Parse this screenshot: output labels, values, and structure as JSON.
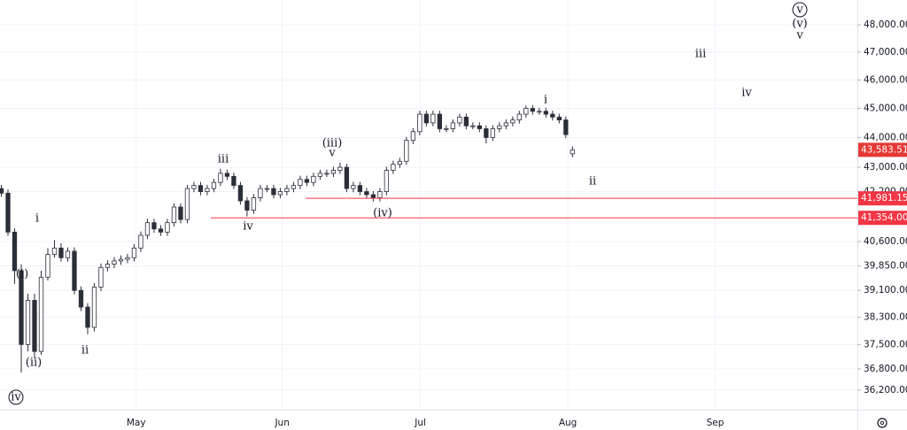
{
  "chart_data": {
    "type": "candlestick",
    "log_scale": true,
    "grid": true,
    "up_color": "#ffffff",
    "down_color": "#2a2e39",
    "line_color": "#f23645",
    "last_color": "#e53935",
    "xlim": [
      -0.2,
      128.9
    ],
    "xticks": [
      {
        "value": 20.3,
        "label": "May"
      },
      {
        "value": 42.3,
        "label": "Jun"
      },
      {
        "value": 63.1,
        "label": "Jul"
      },
      {
        "value": 85.3,
        "label": "Aug"
      },
      {
        "value": 107.5,
        "label": "Sep"
      }
    ],
    "ylim": [
      35660,
      48930
    ],
    "yticks": [
      {
        "value": 48000,
        "label": "48,000.00"
      },
      {
        "value": 47000,
        "label": "47,000.00"
      },
      {
        "value": 46000,
        "label": "46,000.00"
      },
      {
        "value": 45000,
        "label": "45,000.00"
      },
      {
        "value": 44000,
        "label": "44,000.00"
      },
      {
        "value": 43000,
        "label": "43,000.00"
      },
      {
        "value": 42200,
        "label": "42,200.00"
      },
      {
        "value": 40600,
        "label": "40,600.00"
      },
      {
        "value": 39850,
        "label": "39,850.00"
      },
      {
        "value": 39100,
        "label": "39,100.00"
      },
      {
        "value": 38300,
        "label": "38,300.00"
      },
      {
        "value": 37500,
        "label": "37,500.00"
      },
      {
        "value": 36800,
        "label": "36,800.00"
      },
      {
        "value": 36200,
        "label": "36,200.00"
      }
    ],
    "open": [
      42300,
      42150,
      40900,
      39700,
      37500,
      38800,
      37300,
      39500,
      40200,
      40400,
      40100,
      40300,
      39100,
      38600,
      38000,
      39200,
      39800,
      39900,
      40000,
      40050,
      40100,
      40400,
      40800,
      41200,
      41000,
      40900,
      41200,
      41700,
      41300,
      42300,
      42400,
      42200,
      42300,
      42500,
      42800,
      42700,
      42400,
      41900,
      41600,
      42000,
      42300,
      42300,
      42100,
      42200,
      42300,
      42400,
      42600,
      42500,
      42700,
      42800,
      42800,
      42900,
      43000,
      42300,
      42400,
      42200,
      42100,
      42000,
      42200,
      42900,
      43100,
      43200,
      43900,
      44200,
      44800,
      44500,
      44800,
      44300,
      44300,
      44500,
      44700,
      44400,
      44400,
      44300,
      44000,
      44300,
      44400,
      44500,
      44600,
      44800,
      45000,
      44900,
      44900,
      44800,
      44700,
      44600,
      43450
    ],
    "high": [
      42420,
      42270,
      41020,
      39900,
      39000,
      39000,
      39700,
      40400,
      40650,
      40550,
      40420,
      40420,
      39220,
      38720,
      39320,
      39920,
      40020,
      40120,
      40170,
      40220,
      40520,
      40920,
      41320,
      41320,
      41120,
      41320,
      41820,
      41820,
      42420,
      42520,
      42520,
      42420,
      42620,
      42950,
      42920,
      42820,
      42520,
      42020,
      42120,
      42420,
      42420,
      42420,
      42320,
      42420,
      42520,
      42720,
      42720,
      42820,
      42920,
      42920,
      43020,
      43150,
      43120,
      42520,
      42520,
      42320,
      42220,
      42320,
      43020,
      43220,
      43320,
      44020,
      44320,
      44920,
      44920,
      44920,
      44920,
      44420,
      44620,
      44820,
      44820,
      44520,
      44520,
      44420,
      44420,
      44520,
      44620,
      44720,
      44920,
      45100,
      45120,
      45020,
      45020,
      44920,
      44820,
      44720,
      43700
    ],
    "low": [
      42030,
      40780,
      39300,
      36700,
      37300,
      37100,
      37200,
      39400,
      40100,
      39980,
      39980,
      38980,
      38480,
      37800,
      37880,
      39080,
      39680,
      39780,
      39880,
      39930,
      39980,
      40280,
      40680,
      40880,
      40780,
      40780,
      41080,
      41180,
      41180,
      42180,
      42080,
      42080,
      42180,
      42380,
      42580,
      42280,
      41780,
      41400,
      41480,
      41880,
      42180,
      41980,
      41980,
      42080,
      42180,
      42280,
      42380,
      42380,
      42580,
      42680,
      42680,
      42780,
      42180,
      42180,
      42080,
      41980,
      41880,
      41880,
      42080,
      42780,
      42980,
      43080,
      43780,
      44080,
      44380,
      44380,
      44180,
      44180,
      44180,
      44380,
      44280,
      44280,
      44180,
      43800,
      43880,
      44180,
      44280,
      44380,
      44480,
      44680,
      44780,
      44780,
      44680,
      44580,
      44480,
      43980,
      43330
    ],
    "close": [
      42150,
      40900,
      39700,
      37500,
      38800,
      37300,
      39500,
      40200,
      40400,
      40100,
      40300,
      39100,
      38600,
      38000,
      39200,
      39800,
      39900,
      40000,
      40050,
      40100,
      40400,
      40800,
      41200,
      41000,
      40900,
      41200,
      41700,
      41300,
      42300,
      42400,
      42200,
      42300,
      42500,
      42800,
      42700,
      42400,
      41900,
      41600,
      42000,
      42300,
      42300,
      42100,
      42200,
      42300,
      42400,
      42600,
      42500,
      42700,
      42800,
      42800,
      42900,
      43000,
      42300,
      42400,
      42200,
      42100,
      42000,
      42200,
      42900,
      43100,
      43200,
      43900,
      44200,
      44800,
      44500,
      44800,
      44300,
      44300,
      44500,
      44700,
      44400,
      44400,
      44300,
      44000,
      44300,
      44400,
      44500,
      44600,
      44800,
      45000,
      44900,
      44900,
      44800,
      44700,
      44600,
      44100,
      43583.51
    ],
    "hlines": [
      {
        "value": 41981.15,
        "label": "41,981.15"
      },
      {
        "value": 41354,
        "label": "41,354.00"
      }
    ],
    "last_price": {
      "value": 43583.51,
      "label": "43,583.51"
    },
    "annotations": [
      "iv",
      "(i)",
      "(ii)",
      "i",
      "ii",
      "iii",
      "iv",
      "(iii)",
      "v",
      "(iv)",
      "i",
      "ii",
      "iii",
      "iv",
      "v",
      "(v)",
      "v"
    ]
  }
}
